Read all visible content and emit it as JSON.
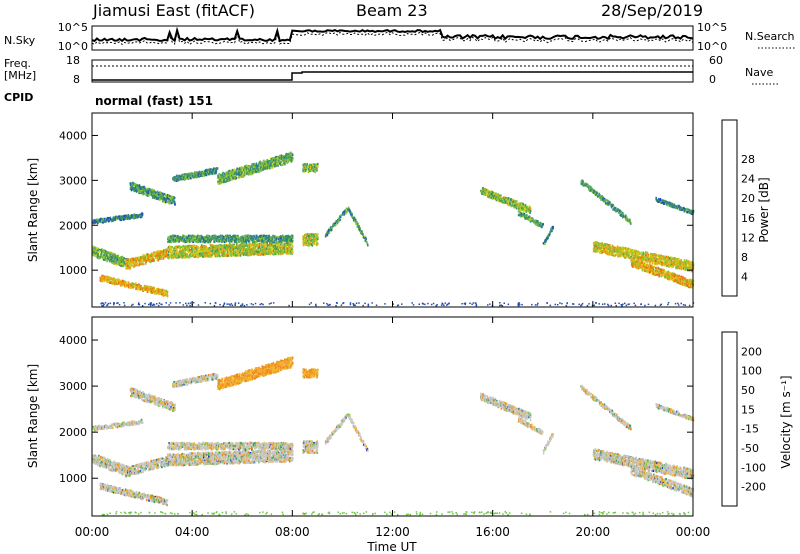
{
  "header": {
    "site": "Jiamusi East (fitACF)",
    "beam": "Beam 23",
    "date": "28/Sep/2019"
  },
  "sky_panel": {
    "left_label": "N.Sky",
    "right_label": "N.Search",
    "tick_top": "10^5",
    "tick_bottom": "10^0"
  },
  "freq_panel": {
    "left_label_1": "Freq.",
    "left_label_2": "[MHz]",
    "right_label": "Nave",
    "left_tick_top": "18",
    "left_tick_bottom": "8",
    "right_tick_top": "60",
    "right_tick_bottom": "0"
  },
  "cpid_panel": {
    "label": "CPID",
    "mode": "normal (fast) 151"
  },
  "chart_data": [
    {
      "type": "heatmap",
      "quantity": "Power",
      "ylabel": "Slant Range [km]",
      "ylim": [
        180,
        4500
      ],
      "yticks": [
        1000,
        2000,
        3000,
        4000
      ],
      "colorbar_label": "Power [dB]",
      "colorbar_ticks": [
        4,
        8,
        12,
        16,
        20,
        24,
        28
      ],
      "colorbar_range": [
        0,
        32
      ],
      "colors": [
        "#0a18e6",
        "#1f4fb8",
        "#2a7f8a",
        "#3f9a5c",
        "#7fc03a",
        "#d2d21e",
        "#f0a010",
        "#f06a10",
        "#e01010"
      ]
    },
    {
      "type": "heatmap",
      "quantity": "Velocity",
      "ylabel": "Slant Range [km]",
      "ylim": [
        180,
        4500
      ],
      "yticks": [
        1000,
        2000,
        3000,
        4000
      ],
      "colorbar_label": "Velocity [m s⁻¹]",
      "colorbar_ticks": [
        "200",
        "100",
        "50",
        "15",
        "-15",
        "-50",
        "-100",
        "-200"
      ],
      "colors": [
        "#1a34c8",
        "#2a8a8a",
        "#49a060",
        "#6cc840",
        "#c8c8c8",
        "#f0b830",
        "#f08a20",
        "#f05020",
        "#e01010"
      ]
    }
  ],
  "xaxis": {
    "label": "Time UT",
    "ticks": [
      "00:00",
      "04:00",
      "08:00",
      "12:00",
      "16:00",
      "20:00",
      "00:00"
    ],
    "range_hours": [
      0,
      24
    ]
  }
}
